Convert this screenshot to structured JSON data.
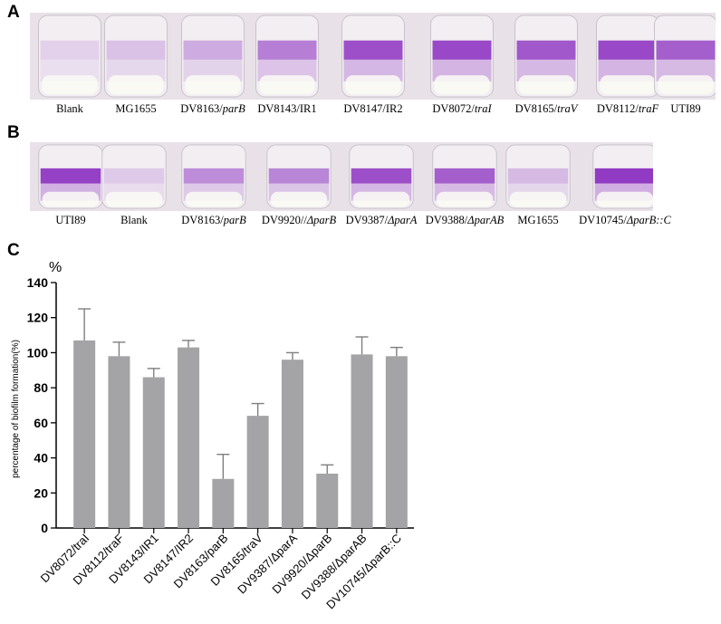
{
  "panels": {
    "a": {
      "letter": "A"
    },
    "b": {
      "letter": "B"
    },
    "c": {
      "letter": "C"
    }
  },
  "panel_a": {
    "labels": [
      {
        "text": "Blank",
        "italic": ""
      },
      {
        "text": "MG1655",
        "italic": ""
      },
      {
        "text": "DV8163/",
        "italic": "parB"
      },
      {
        "text": "DV8143/IR1",
        "italic": ""
      },
      {
        "text": "DV8147/IR2",
        "italic": ""
      },
      {
        "text": "DV8072/",
        "italic": "traI"
      },
      {
        "text": "DV8165/",
        "italic": "traV"
      },
      {
        "text": "DV8112/",
        "italic": "traF"
      },
      {
        "text": "UTI89",
        "italic": ""
      }
    ],
    "stain_intensity": [
      0.0,
      0.1,
      0.25,
      0.55,
      0.85,
      0.9,
      0.8,
      0.9,
      0.75
    ]
  },
  "panel_b": {
    "labels": [
      {
        "text": "UTI89",
        "italic": ""
      },
      {
        "text": "Blank",
        "italic": ""
      },
      {
        "text": "DV8163/",
        "italic": "parB"
      },
      {
        "text": "DV9920//",
        "italic": "ΔparB"
      },
      {
        "text": "DV9387/",
        "italic": "ΔparA"
      },
      {
        "text": "DV9388/",
        "italic": "ΔparAB"
      },
      {
        "text": "MG1655",
        "italic": ""
      },
      {
        "text": "DV10745/",
        "italic": "ΔparB::C"
      }
    ],
    "stain_intensity": [
      0.95,
      0.05,
      0.45,
      0.5,
      0.85,
      0.75,
      0.15,
      1.0
    ]
  },
  "colors": {
    "bar": "#a4a4a6",
    "stain": "#8b2fc0",
    "well_bg": "#e8e2e8"
  },
  "chart_data": {
    "type": "bar",
    "unit_label": "%",
    "ylabel": "percentage of biofilm formation(%)",
    "ylim": [
      0,
      140
    ],
    "yticks": [
      0,
      20,
      40,
      60,
      80,
      100,
      120,
      140
    ],
    "categories": [
      "DV8072/traI",
      "DV8112/traF",
      "DV8143/IR1",
      "DV8147/IR2",
      "DV8163/parB",
      "DV8165/traV",
      "DV9387/ΔparA",
      "DV9920/ΔparB",
      "DV9388/ΔparAB",
      "DV10745/ΔparB::C"
    ],
    "values": [
      107,
      98,
      86,
      103,
      28,
      64,
      96,
      31,
      99,
      98
    ],
    "errors": [
      18,
      8,
      5,
      4,
      14,
      7,
      4,
      5,
      10,
      5
    ]
  }
}
